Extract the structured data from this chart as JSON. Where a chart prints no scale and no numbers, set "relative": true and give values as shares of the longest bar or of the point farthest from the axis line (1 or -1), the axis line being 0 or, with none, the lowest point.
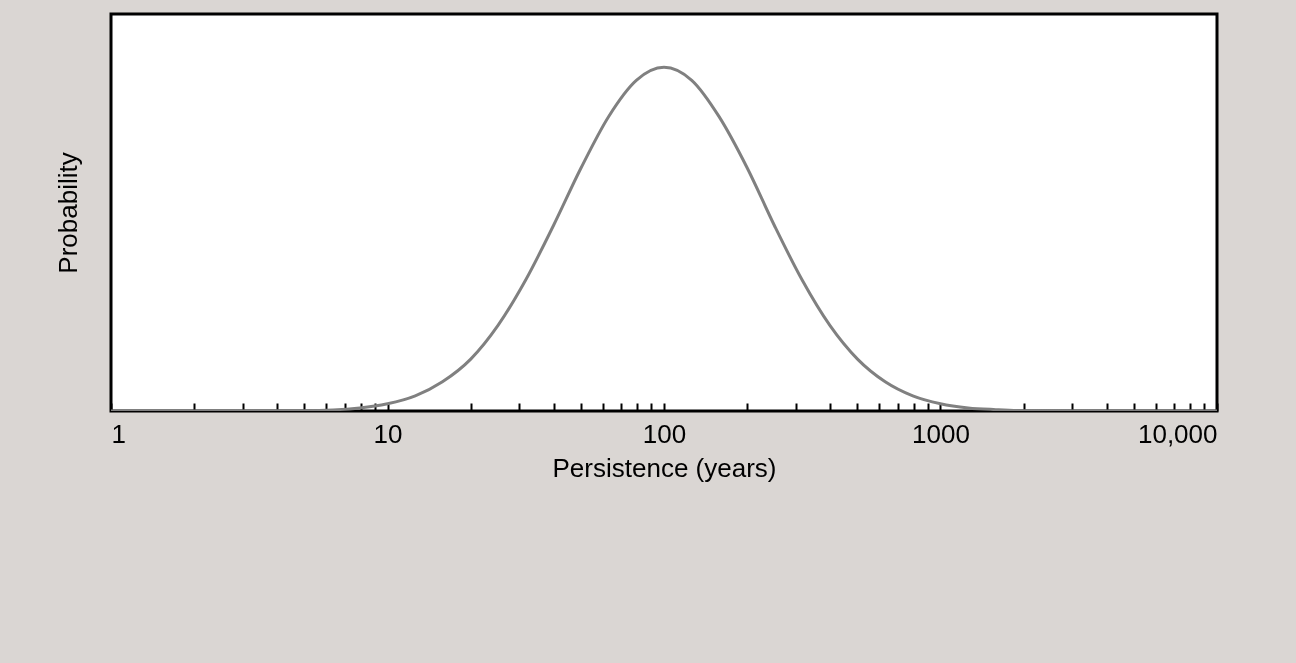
{
  "chart_data": {
    "type": "line",
    "xlabel": "Persistence (years)",
    "ylabel": "Probability",
    "relative": true,
    "log": "x",
    "xlim": [
      1,
      10000
    ],
    "xticks": [
      1,
      {
        "value": 2,
        "label": null
      },
      {
        "value": 3,
        "label": null
      },
      {
        "value": 4,
        "label": null
      },
      {
        "value": 5,
        "label": null
      },
      {
        "value": 6,
        "label": null
      },
      {
        "value": 7,
        "label": null
      },
      {
        "value": 8,
        "label": null
      },
      {
        "value": 9,
        "label": null
      },
      10,
      {
        "value": 20,
        "label": null
      },
      {
        "value": 30,
        "label": null
      },
      {
        "value": 40,
        "label": null
      },
      {
        "value": 50,
        "label": null
      },
      {
        "value": 60,
        "label": null
      },
      {
        "value": 70,
        "label": null
      },
      {
        "value": 80,
        "label": null
      },
      {
        "value": 90,
        "label": null
      },
      100,
      {
        "value": 200,
        "label": null
      },
      {
        "value": 300,
        "label": null
      },
      {
        "value": 400,
        "label": null
      },
      {
        "value": 500,
        "label": null
      },
      {
        "value": 600,
        "label": null
      },
      {
        "value": 700,
        "label": null
      },
      {
        "value": 800,
        "label": null
      },
      {
        "value": 900,
        "label": null
      },
      1000,
      {
        "value": 2000,
        "label": null
      },
      {
        "value": 3000,
        "label": null
      },
      {
        "value": 4000,
        "label": null
      },
      {
        "value": 5000,
        "label": null
      },
      {
        "value": 6000,
        "label": null
      },
      {
        "value": 7000,
        "label": null
      },
      {
        "value": 8000,
        "label": null
      },
      {
        "value": 9000,
        "label": null
      },
      {
        "value": 10000,
        "label": "10,000"
      }
    ],
    "series": [
      {
        "color": "#808080",
        "x": [
          1,
          2,
          5,
          7.94,
          10,
          12.6,
          15.8,
          20,
          25.1,
          31.6,
          39.8,
          50.1,
          63.1,
          79.4,
          100,
          126,
          158,
          200,
          251,
          316,
          398,
          501,
          631,
          794,
          1000,
          1259,
          1585,
          2000,
          5000,
          10000
        ],
        "values": [
          0,
          0,
          0.001,
          0.009,
          0.021,
          0.044,
          0.085,
          0.151,
          0.249,
          0.381,
          0.539,
          0.707,
          0.857,
          0.962,
          1,
          0.962,
          0.857,
          0.707,
          0.539,
          0.381,
          0.249,
          0.151,
          0.085,
          0.044,
          0.021,
          0.009,
          0.004,
          0.001,
          0,
          0
        ]
      }
    ],
    "grid": false
  }
}
